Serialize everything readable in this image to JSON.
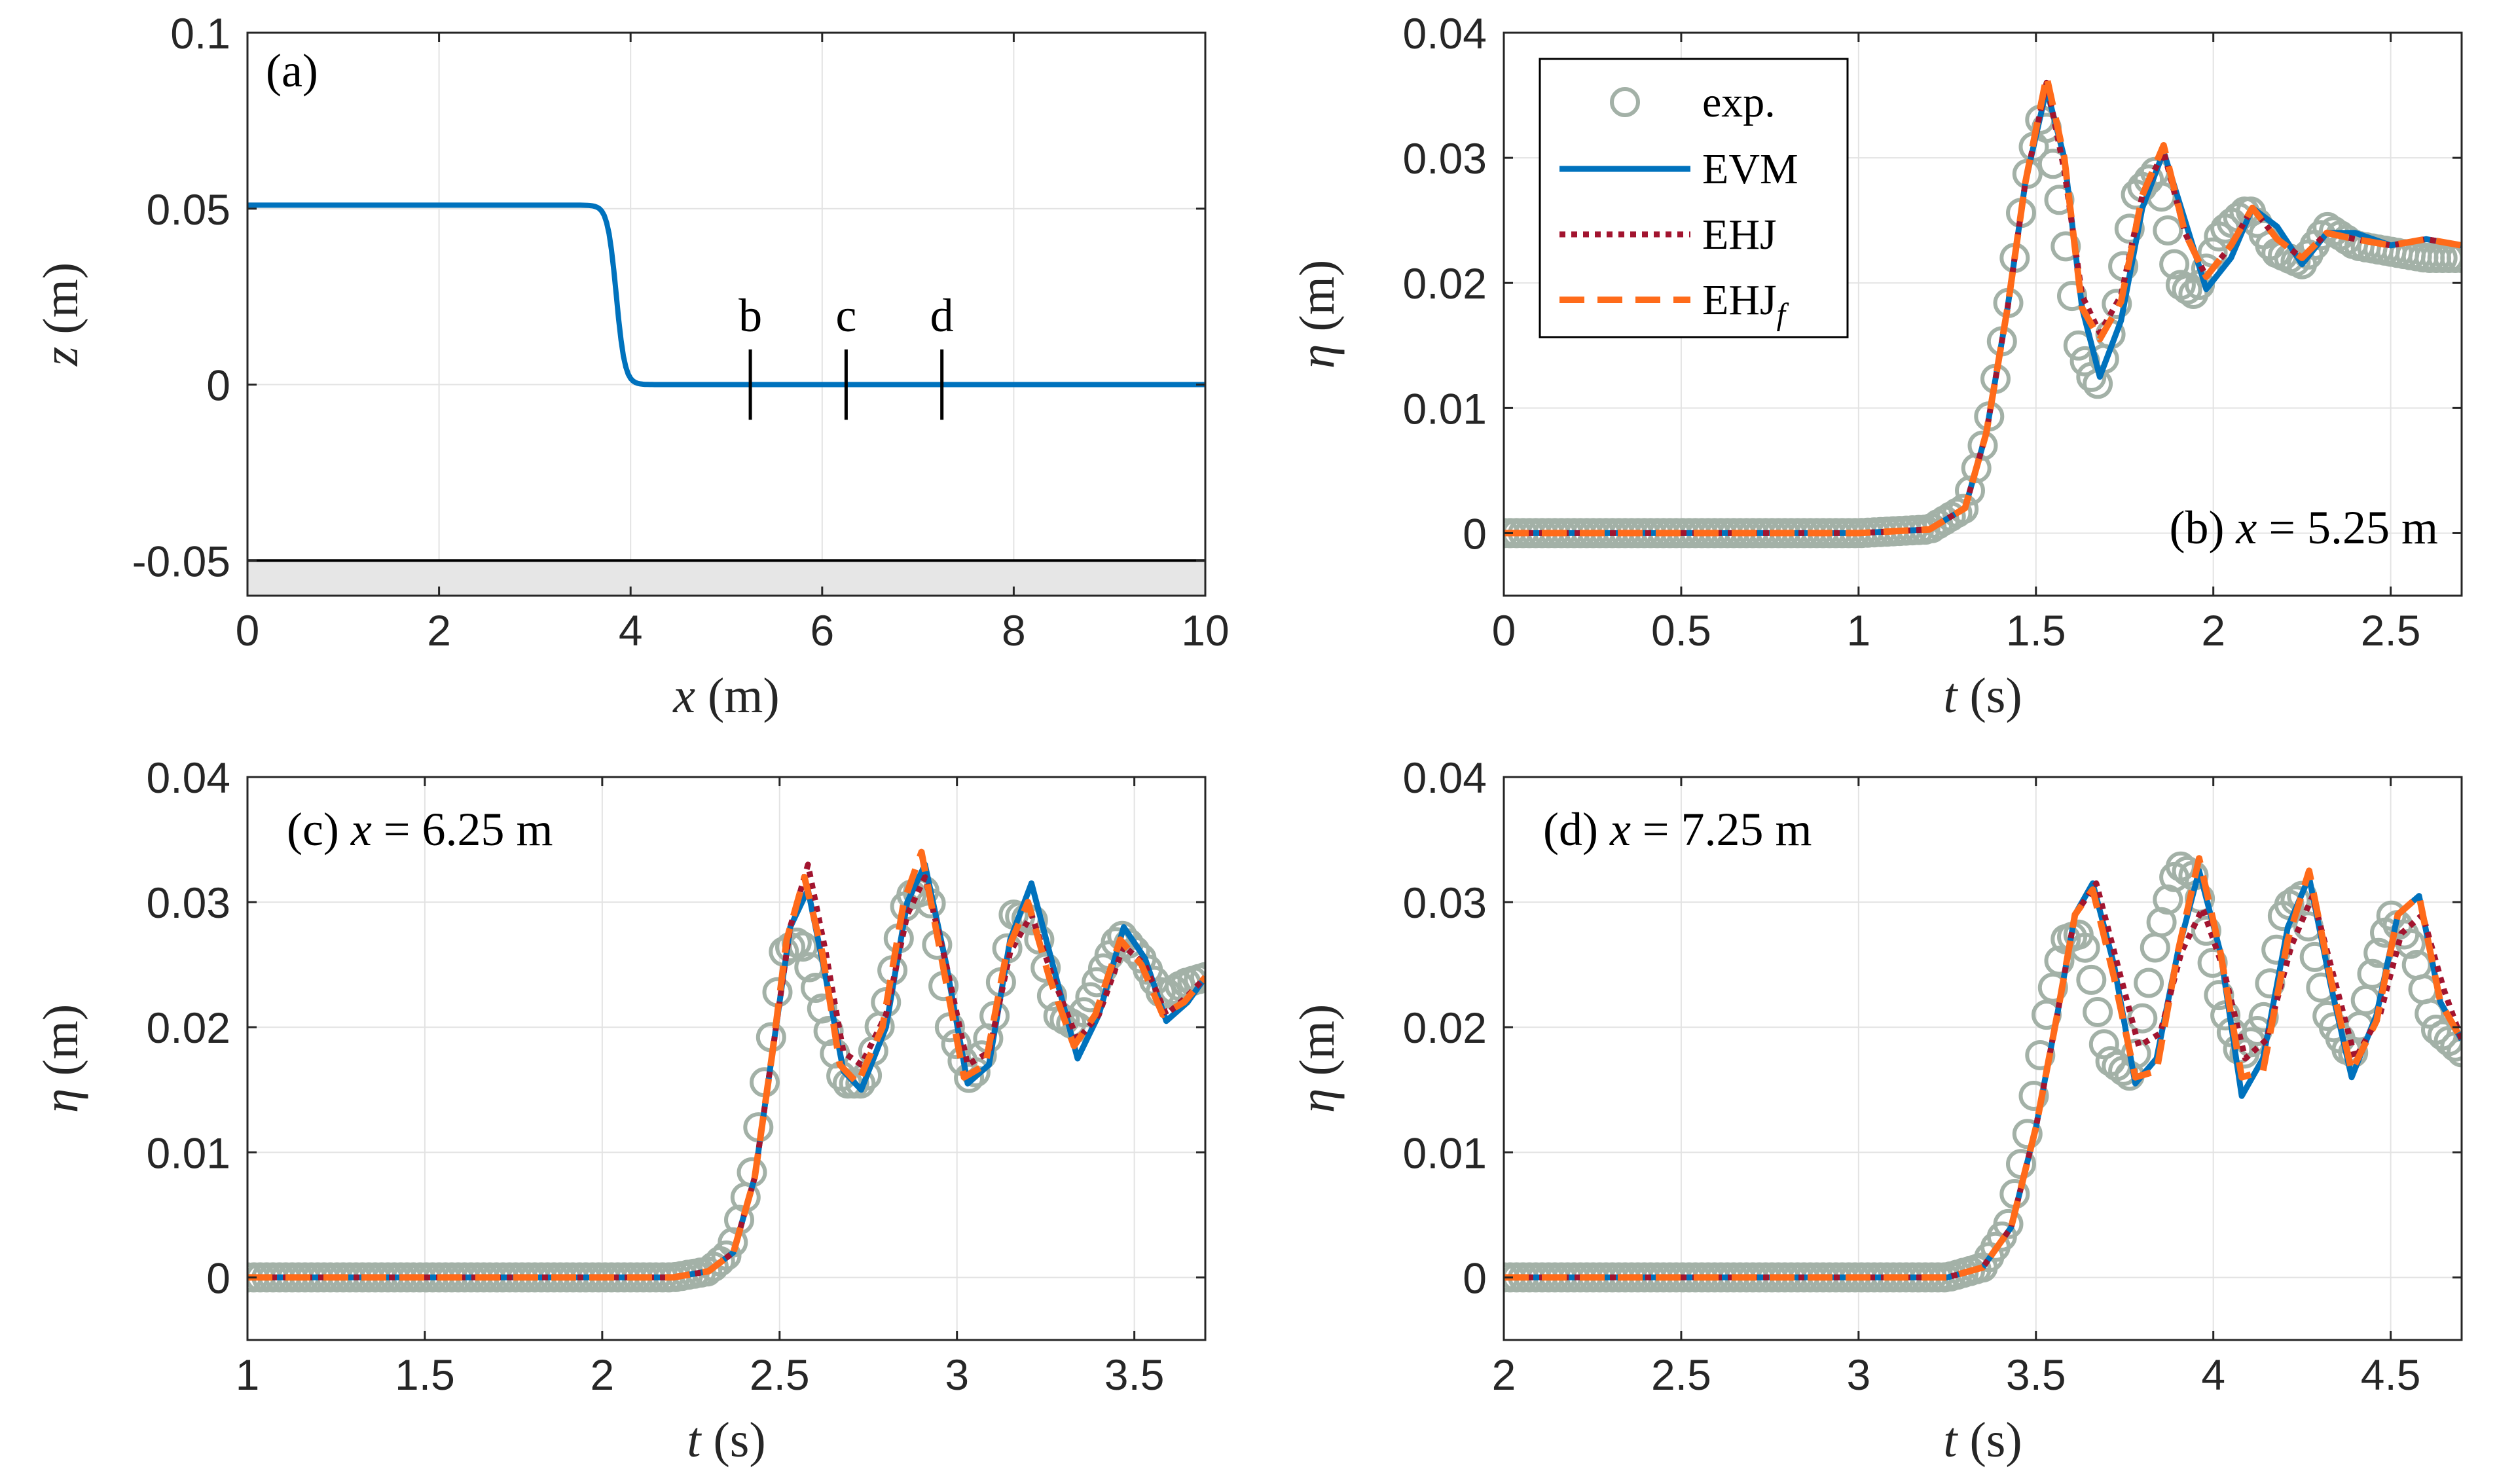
{
  "colors": {
    "exp": "#A3B1A7",
    "evm": "#0072BD",
    "ehj": "#A2142F",
    "ehjf": "#FF6B1A",
    "axis": "#262626",
    "grid": "#E3E3E3",
    "bottom_fill": "#E6E6E6"
  },
  "legend": {
    "exp": "exp.",
    "evm": "EVM",
    "ehj": "EHJ",
    "ehjf_base": "EHJ",
    "ehjf_sub": "f"
  },
  "chart_data": [
    {
      "id": "a",
      "type": "line",
      "panel_label": "(a)",
      "xlabel_var": "x",
      "xlabel_unit": " (m)",
      "ylabel_var": "z",
      "ylabel_unit": " (m)",
      "xlim": [
        0,
        10
      ],
      "ylim": [
        -0.06,
        0.1
      ],
      "xticks": [
        0,
        2,
        4,
        6,
        8,
        10
      ],
      "xtick_labels": [
        "0",
        "2",
        "4",
        "6",
        "8",
        "10"
      ],
      "yticks": [
        -0.05,
        0,
        0.05,
        0.1
      ],
      "ytick_labels": [
        "-0.05",
        "0",
        "0.05",
        "0.1"
      ],
      "bottom_level": -0.05,
      "step": {
        "high": 0.051,
        "low": 0,
        "center": 3.85,
        "width": 0.09
      },
      "gauges": [
        {
          "label": "b",
          "x": 5.25
        },
        {
          "label": "c",
          "x": 6.25
        },
        {
          "label": "d",
          "x": 7.25
        }
      ],
      "gauge_span": [
        -0.01,
        0.01
      ]
    },
    {
      "id": "b",
      "type": "line",
      "annotation_prefix": "(b) ",
      "annotation_var": "x",
      "annotation_rest": " = 5.25 m",
      "xlabel_var": "t",
      "xlabel_unit": " (s)",
      "ylabel_var": "η",
      "ylabel_unit": " (m)",
      "xlim": [
        0,
        2.7
      ],
      "ylim": [
        -0.005,
        0.04
      ],
      "xticks": [
        0,
        0.5,
        1,
        1.5,
        2,
        2.5
      ],
      "xtick_labels": [
        "0",
        "0.5",
        "1",
        "1.5",
        "2",
        "2.5"
      ],
      "yticks": [
        0,
        0.01,
        0.02,
        0.03,
        0.04
      ],
      "ytick_labels": [
        "0",
        "0.01",
        "0.02",
        "0.03",
        "0.04"
      ],
      "series": [
        {
          "name": "exp.",
          "x": [
            0,
            1.0,
            1.2,
            1.3,
            1.36,
            1.42,
            1.47,
            1.52,
            1.57,
            1.62,
            1.67,
            1.72,
            1.78,
            1.84,
            1.9,
            1.95,
            2.02,
            2.1,
            2.17,
            2.25,
            2.32,
            2.4,
            2.5,
            2.6,
            2.7
          ],
          "y": [
            0,
            0,
            0.0003,
            0.002,
            0.008,
            0.018,
            0.028,
            0.034,
            0.026,
            0.015,
            0.0115,
            0.017,
            0.027,
            0.029,
            0.02,
            0.019,
            0.024,
            0.026,
            0.0225,
            0.0215,
            0.0245,
            0.023,
            0.0225,
            0.022,
            0.022
          ]
        },
        {
          "name": "EVM",
          "x": [
            0,
            1.0,
            1.2,
            1.3,
            1.36,
            1.42,
            1.47,
            1.53,
            1.58,
            1.63,
            1.68,
            1.74,
            1.8,
            1.86,
            1.92,
            1.98,
            2.05,
            2.11,
            2.18,
            2.25,
            2.32,
            2.4,
            2.5,
            2.6,
            2.7
          ],
          "y": [
            0,
            0,
            0.0003,
            0.002,
            0.008,
            0.018,
            0.028,
            0.0355,
            0.03,
            0.018,
            0.0125,
            0.017,
            0.026,
            0.0305,
            0.025,
            0.0195,
            0.022,
            0.026,
            0.0245,
            0.0215,
            0.024,
            0.024,
            0.023,
            0.0235,
            0.023
          ]
        },
        {
          "name": "EHJ",
          "x": [
            0,
            1.0,
            1.2,
            1.3,
            1.36,
            1.42,
            1.47,
            1.53,
            1.58,
            1.63,
            1.68,
            1.74,
            1.8,
            1.86,
            1.92,
            1.98,
            2.05,
            2.11,
            2.18,
            2.25,
            2.32,
            2.4,
            2.5,
            2.6,
            2.7
          ],
          "y": [
            0,
            0,
            0.0003,
            0.002,
            0.008,
            0.018,
            0.028,
            0.036,
            0.029,
            0.019,
            0.016,
            0.019,
            0.027,
            0.0305,
            0.024,
            0.0205,
            0.023,
            0.026,
            0.0235,
            0.022,
            0.024,
            0.0235,
            0.023,
            0.0235,
            0.023
          ]
        },
        {
          "name": "EHJf",
          "x": [
            0,
            1.0,
            1.2,
            1.3,
            1.36,
            1.42,
            1.47,
            1.53,
            1.58,
            1.63,
            1.68,
            1.74,
            1.8,
            1.86,
            1.92,
            1.98,
            2.05,
            2.11,
            2.18,
            2.25,
            2.32,
            2.4,
            2.5,
            2.6,
            2.7
          ],
          "y": [
            0,
            0,
            0.0003,
            0.002,
            0.008,
            0.018,
            0.028,
            0.0365,
            0.03,
            0.018,
            0.0155,
            0.0185,
            0.027,
            0.031,
            0.024,
            0.0205,
            0.023,
            0.026,
            0.0235,
            0.022,
            0.024,
            0.0235,
            0.023,
            0.0235,
            0.023
          ]
        }
      ]
    },
    {
      "id": "c",
      "type": "line",
      "annotation_prefix": "(c) ",
      "annotation_var": "x",
      "annotation_rest": " = 6.25 m",
      "xlabel_var": "t",
      "xlabel_unit": " (s)",
      "ylabel_var": "η",
      "ylabel_unit": " (m)",
      "xlim": [
        1,
        3.7
      ],
      "ylim": [
        -0.005,
        0.04
      ],
      "xticks": [
        1,
        1.5,
        2,
        2.5,
        3,
        3.5
      ],
      "xtick_labels": [
        "1",
        "1.5",
        "2",
        "2.5",
        "3",
        "3.5"
      ],
      "yticks": [
        0,
        0.01,
        0.02,
        0.03,
        0.04
      ],
      "ytick_labels": [
        "0",
        "0.01",
        "0.02",
        "0.03",
        "0.04"
      ],
      "series": [
        {
          "name": "exp.",
          "x": [
            1.0,
            2.2,
            2.3,
            2.36,
            2.42,
            2.47,
            2.51,
            2.56,
            2.62,
            2.68,
            2.74,
            2.8,
            2.86,
            2.92,
            2.98,
            3.04,
            3.1,
            3.16,
            3.22,
            3.28,
            3.34,
            3.4,
            3.46,
            3.52,
            3.58,
            3.64,
            3.7
          ],
          "y": [
            0,
            0,
            0.0005,
            0.002,
            0.008,
            0.018,
            0.026,
            0.027,
            0.0215,
            0.0155,
            0.0155,
            0.022,
            0.0305,
            0.031,
            0.02,
            0.0155,
            0.02,
            0.029,
            0.0285,
            0.021,
            0.02,
            0.024,
            0.0275,
            0.0255,
            0.0225,
            0.0235,
            0.024
          ]
        },
        {
          "name": "EVM",
          "x": [
            1.0,
            2.2,
            2.3,
            2.37,
            2.43,
            2.48,
            2.53,
            2.58,
            2.63,
            2.68,
            2.73,
            2.8,
            2.86,
            2.91,
            2.97,
            3.03,
            3.09,
            3.15,
            3.21,
            3.27,
            3.34,
            3.4,
            3.47,
            3.53,
            3.59,
            3.65,
            3.7
          ],
          "y": [
            0,
            0,
            0.0005,
            0.002,
            0.008,
            0.018,
            0.028,
            0.031,
            0.024,
            0.0165,
            0.015,
            0.02,
            0.03,
            0.033,
            0.025,
            0.0155,
            0.017,
            0.027,
            0.0315,
            0.025,
            0.0175,
            0.021,
            0.028,
            0.0255,
            0.0205,
            0.022,
            0.024
          ]
        },
        {
          "name": "EHJ",
          "x": [
            1.0,
            2.2,
            2.3,
            2.37,
            2.43,
            2.48,
            2.53,
            2.58,
            2.63,
            2.68,
            2.73,
            2.8,
            2.86,
            2.91,
            2.97,
            3.03,
            3.09,
            3.15,
            3.21,
            3.27,
            3.34,
            3.4,
            3.47,
            3.53,
            3.59,
            3.65,
            3.7
          ],
          "y": [
            0,
            0,
            0.0005,
            0.002,
            0.008,
            0.018,
            0.028,
            0.033,
            0.026,
            0.018,
            0.017,
            0.021,
            0.029,
            0.032,
            0.025,
            0.017,
            0.018,
            0.026,
            0.029,
            0.024,
            0.019,
            0.021,
            0.0265,
            0.025,
            0.021,
            0.0225,
            0.024
          ]
        },
        {
          "name": "EHJf",
          "x": [
            1.0,
            2.2,
            2.3,
            2.37,
            2.43,
            2.48,
            2.52,
            2.57,
            2.62,
            2.67,
            2.72,
            2.79,
            2.85,
            2.9,
            2.96,
            3.02,
            3.08,
            3.14,
            3.2,
            3.26,
            3.33,
            3.39,
            3.46,
            3.52,
            3.58,
            3.64,
            3.7
          ],
          "y": [
            0,
            0,
            0.0005,
            0.002,
            0.008,
            0.018,
            0.027,
            0.032,
            0.026,
            0.017,
            0.0155,
            0.02,
            0.03,
            0.034,
            0.025,
            0.016,
            0.017,
            0.026,
            0.03,
            0.024,
            0.0185,
            0.021,
            0.027,
            0.025,
            0.021,
            0.022,
            0.024
          ]
        }
      ]
    },
    {
      "id": "d",
      "type": "line",
      "annotation_prefix": "(d) ",
      "annotation_var": "x",
      "annotation_rest": " = 7.25 m",
      "xlabel_var": "t",
      "xlabel_unit": " (s)",
      "ylabel_var": "η",
      "ylabel_unit": " (m)",
      "xlim": [
        2,
        4.7
      ],
      "ylim": [
        -0.005,
        0.04
      ],
      "xticks": [
        2,
        2.5,
        3,
        3.5,
        4,
        4.5
      ],
      "xtick_labels": [
        "2",
        "2.5",
        "3",
        "3.5",
        "4",
        "4.5"
      ],
      "yticks": [
        0,
        0.01,
        0.02,
        0.03,
        0.04
      ],
      "ytick_labels": [
        "0",
        "0.01",
        "0.02",
        "0.03",
        "0.04"
      ],
      "series": [
        {
          "name": "exp.",
          "x": [
            2.0,
            3.25,
            3.35,
            3.42,
            3.48,
            3.53,
            3.58,
            3.63,
            3.7,
            3.77,
            3.84,
            3.9,
            3.95,
            4.02,
            4.08,
            4.14,
            4.2,
            4.25,
            4.32,
            4.39,
            4.45,
            4.5,
            4.56,
            4.62,
            4.7
          ],
          "y": [
            0,
            0,
            0.0008,
            0.004,
            0.012,
            0.021,
            0.027,
            0.0275,
            0.0175,
            0.016,
            0.027,
            0.033,
            0.032,
            0.022,
            0.0175,
            0.0205,
            0.0295,
            0.0305,
            0.021,
            0.0175,
            0.0245,
            0.029,
            0.0265,
            0.02,
            0.018
          ]
        },
        {
          "name": "EVM",
          "x": [
            2.0,
            3.25,
            3.35,
            3.43,
            3.5,
            3.56,
            3.61,
            3.66,
            3.72,
            3.78,
            3.84,
            3.9,
            3.96,
            4.02,
            4.08,
            4.14,
            4.21,
            4.27,
            4.33,
            4.39,
            4.46,
            4.52,
            4.58,
            4.64,
            4.7
          ],
          "y": [
            0,
            0,
            0.0008,
            0.004,
            0.012,
            0.021,
            0.029,
            0.0315,
            0.025,
            0.0155,
            0.0175,
            0.026,
            0.0325,
            0.026,
            0.0145,
            0.0175,
            0.028,
            0.032,
            0.0235,
            0.016,
            0.021,
            0.029,
            0.0305,
            0.022,
            0.019
          ]
        },
        {
          "name": "EHJ",
          "x": [
            2.0,
            3.25,
            3.35,
            3.43,
            3.5,
            3.56,
            3.61,
            3.67,
            3.73,
            3.79,
            3.85,
            3.91,
            3.97,
            4.03,
            4.09,
            4.15,
            4.22,
            4.28,
            4.34,
            4.4,
            4.47,
            4.53,
            4.59,
            4.65,
            4.7
          ],
          "y": [
            0,
            0,
            0.0008,
            0.004,
            0.012,
            0.021,
            0.029,
            0.0315,
            0.025,
            0.0185,
            0.0195,
            0.026,
            0.0295,
            0.0245,
            0.0175,
            0.019,
            0.0265,
            0.0305,
            0.024,
            0.0175,
            0.021,
            0.0275,
            0.029,
            0.023,
            0.019
          ]
        },
        {
          "name": "EHJf",
          "x": [
            2.0,
            3.25,
            3.35,
            3.43,
            3.5,
            3.56,
            3.61,
            3.66,
            3.72,
            3.78,
            3.84,
            3.9,
            3.96,
            4.02,
            4.08,
            4.14,
            4.21,
            4.27,
            4.33,
            4.39,
            4.46,
            4.52,
            4.58,
            4.64,
            4.7
          ],
          "y": [
            0,
            0,
            0.0008,
            0.004,
            0.012,
            0.021,
            0.029,
            0.031,
            0.024,
            0.016,
            0.0165,
            0.026,
            0.0335,
            0.026,
            0.016,
            0.0165,
            0.027,
            0.0325,
            0.024,
            0.0165,
            0.0205,
            0.029,
            0.0305,
            0.022,
            0.019
          ]
        }
      ]
    }
  ]
}
